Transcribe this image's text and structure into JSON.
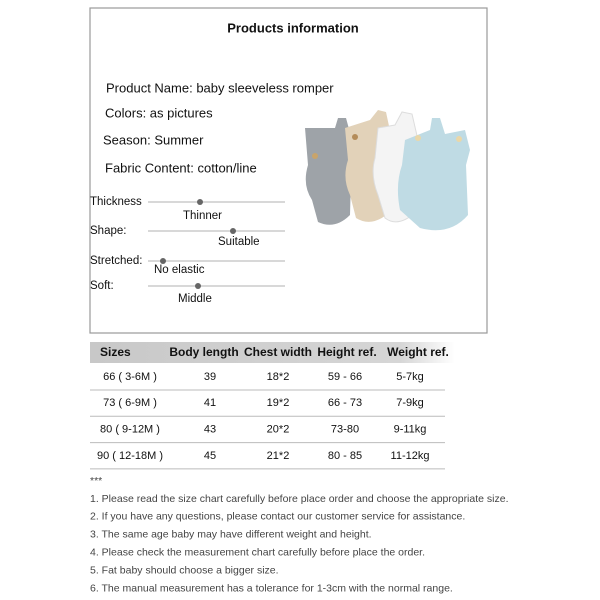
{
  "header": {
    "title": "Products information"
  },
  "details": [
    "Product Name: baby sleeveless romper",
    "Colors: as pictures",
    "Season: Summer",
    "Fabric Content: cotton/line"
  ],
  "scales": [
    {
      "label": "Thickness",
      "value": "Thinner"
    },
    {
      "label": "Shape:",
      "value": "Suitable"
    },
    {
      "label": "Stretched:",
      "value": "No elastic"
    },
    {
      "label": "Soft:",
      "value": "Middle"
    }
  ],
  "table": {
    "header": [
      "Sizes",
      "Body length",
      "Chest width",
      "Height ref.",
      "Weight ref."
    ],
    "rows": [
      [
        "66 ( 3-6M )",
        "39",
        "18*2",
        "59 - 66",
        "5-7kg"
      ],
      [
        "73 ( 6-9M )",
        "41",
        "19*2",
        "66 - 73",
        "7-9kg"
      ],
      [
        "80 ( 9-12M )",
        "43",
        "20*2",
        "73-80",
        "9-11kg"
      ],
      [
        "90 ( 12-18M )",
        "45",
        "21*2",
        "80 - 85",
        "11-12kg"
      ]
    ]
  },
  "notes": {
    "marker": "***",
    "items": [
      "1. Please read the size chart carefully before place order and choose the appropriate size.",
      "2. If you have any questions, please contact our customer service for assistance.",
      "3. The same age baby may have different weight and height.",
      "4. Please check the measurement chart carefully before place the order.",
      "5. Fat baby should choose a bigger size.",
      "6. The manual measurement has a tolerance for 1-3cm with the normal range."
    ]
  }
}
